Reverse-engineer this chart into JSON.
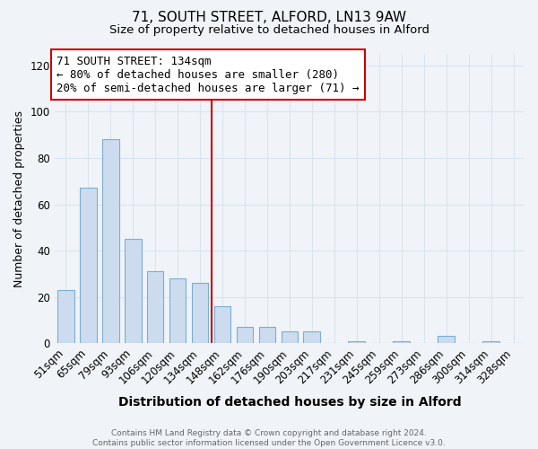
{
  "title": "71, SOUTH STREET, ALFORD, LN13 9AW",
  "subtitle": "Size of property relative to detached houses in Alford",
  "xlabel": "Distribution of detached houses by size in Alford",
  "ylabel": "Number of detached properties",
  "categories": [
    "51sqm",
    "65sqm",
    "79sqm",
    "93sqm",
    "106sqm",
    "120sqm",
    "134sqm",
    "148sqm",
    "162sqm",
    "176sqm",
    "190sqm",
    "203sqm",
    "217sqm",
    "231sqm",
    "245sqm",
    "259sqm",
    "273sqm",
    "286sqm",
    "300sqm",
    "314sqm",
    "328sqm"
  ],
  "values": [
    23,
    67,
    88,
    45,
    31,
    28,
    26,
    16,
    7,
    7,
    5,
    5,
    0,
    1,
    0,
    1,
    0,
    3,
    0,
    1,
    0
  ],
  "bar_color": "#ccdcee",
  "bar_edge_color": "#7aaed4",
  "highlight_index": 6,
  "highlight_line_color": "#cc0000",
  "annotation_line1": "71 SOUTH STREET: 134sqm",
  "annotation_line2": "← 80% of detached houses are smaller (280)",
  "annotation_line3": "20% of semi-detached houses are larger (71) →",
  "annotation_box_color": "#ffffff",
  "annotation_box_edge_color": "#cc0000",
  "ylim": [
    0,
    125
  ],
  "yticks": [
    0,
    20,
    40,
    60,
    80,
    100,
    120
  ],
  "footer_text": "Contains HM Land Registry data © Crown copyright and database right 2024.\nContains public sector information licensed under the Open Government Licence v3.0.",
  "background_color": "#f0f4f8",
  "grid_color": "#d8e4f0",
  "title_fontsize": 11,
  "subtitle_fontsize": 9.5,
  "xlabel_fontsize": 10,
  "ylabel_fontsize": 9,
  "tick_fontsize": 8.5,
  "annotation_fontsize": 9
}
